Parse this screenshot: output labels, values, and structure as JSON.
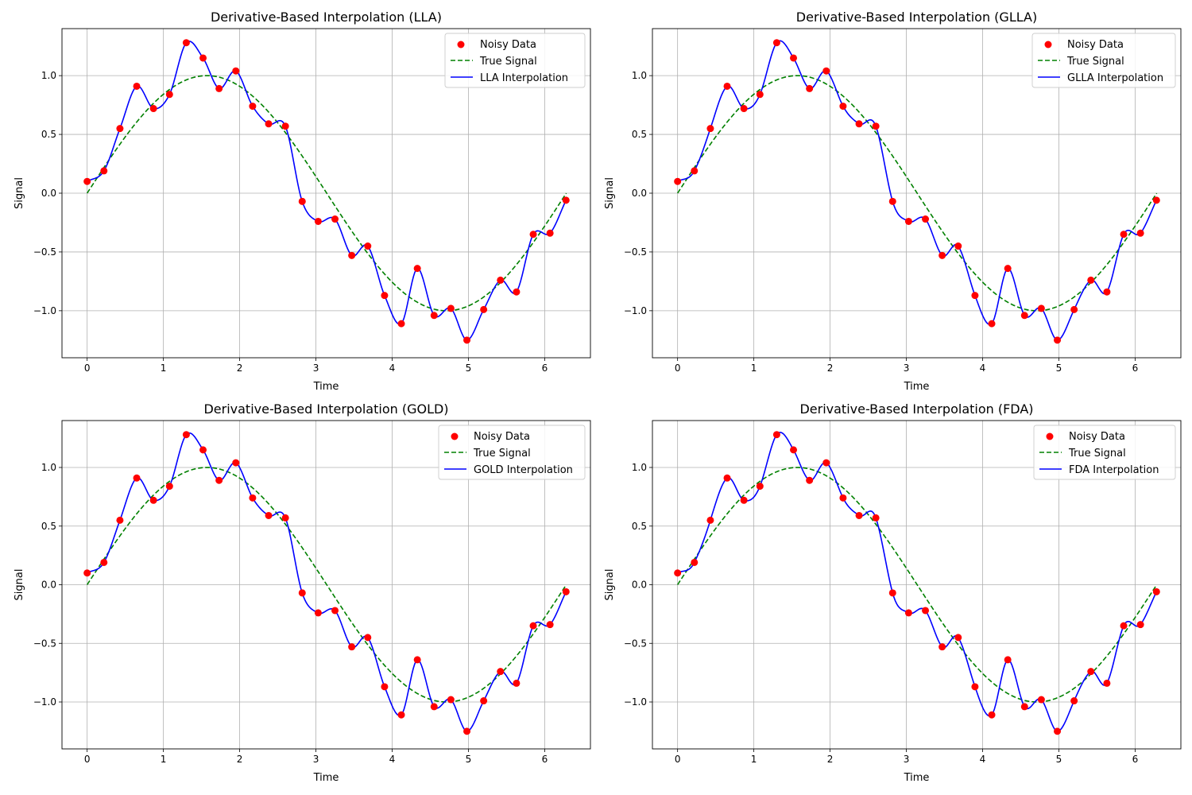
{
  "figure": {
    "legend_labels": {
      "noisy": "Noisy Data",
      "true_signal": "True Signal"
    },
    "colors": {
      "noisy": "#ff0000",
      "true_signal": "#008000",
      "interp": "#0000ff",
      "grid": "#b0b0b0"
    }
  },
  "chart_data": [
    {
      "type": "line",
      "title": "Derivative-Based Interpolation (LLA)",
      "xlabel": "Time",
      "ylabel": "Signal",
      "xlim": [
        -0.33,
        6.6
      ],
      "ylim": [
        -1.4,
        1.4
      ],
      "xticks": [
        0,
        1,
        2,
        3,
        4,
        5,
        6
      ],
      "yticks": [
        -1.0,
        -0.5,
        0.0,
        0.5,
        1.0
      ],
      "grid": true,
      "legend": "top-right",
      "series": [
        {
          "name": "Noisy Data",
          "kind": "scatter",
          "x": [
            0.0,
            0.22,
            0.43,
            0.65,
            0.87,
            1.08,
            1.3,
            1.52,
            1.73,
            1.95,
            2.17,
            2.38,
            2.6,
            2.82,
            3.03,
            3.25,
            3.47,
            3.68,
            3.9,
            4.12,
            4.33,
            4.55,
            4.77,
            4.98,
            5.2,
            5.42,
            5.63,
            5.85,
            6.07,
            6.28
          ],
          "y": [
            0.1,
            0.19,
            0.55,
            0.91,
            0.72,
            0.84,
            1.28,
            1.15,
            0.89,
            1.04,
            0.74,
            0.59,
            0.57,
            -0.07,
            -0.24,
            -0.22,
            -0.53,
            -0.45,
            -0.87,
            -1.11,
            -0.64,
            -1.04,
            -0.98,
            -1.25,
            -0.99,
            -0.74,
            -0.84,
            -0.35,
            -0.34,
            -0.06
          ]
        },
        {
          "name": "True Signal",
          "kind": "dashed-line",
          "function": "sin(t)",
          "x_range": [
            0,
            6.283
          ]
        },
        {
          "name": "LLA Interpolation",
          "kind": "line",
          "method": "interpolates Noisy Data"
        }
      ]
    },
    {
      "type": "line",
      "title": "Derivative-Based Interpolation (GLLA)",
      "xlabel": "Time",
      "ylabel": "Signal",
      "xlim": [
        -0.33,
        6.6
      ],
      "ylim": [
        -1.4,
        1.4
      ],
      "xticks": [
        0,
        1,
        2,
        3,
        4,
        5,
        6
      ],
      "yticks": [
        -1.0,
        -0.5,
        0.0,
        0.5,
        1.0
      ],
      "grid": true,
      "legend": "top-right",
      "series": [
        {
          "name": "Noisy Data",
          "kind": "scatter",
          "x": [
            0.0,
            0.22,
            0.43,
            0.65,
            0.87,
            1.08,
            1.3,
            1.52,
            1.73,
            1.95,
            2.17,
            2.38,
            2.6,
            2.82,
            3.03,
            3.25,
            3.47,
            3.68,
            3.9,
            4.12,
            4.33,
            4.55,
            4.77,
            4.98,
            5.2,
            5.42,
            5.63,
            5.85,
            6.07,
            6.28
          ],
          "y": [
            0.1,
            0.19,
            0.55,
            0.91,
            0.72,
            0.84,
            1.28,
            1.15,
            0.89,
            1.04,
            0.74,
            0.59,
            0.57,
            -0.07,
            -0.24,
            -0.22,
            -0.53,
            -0.45,
            -0.87,
            -1.11,
            -0.64,
            -1.04,
            -0.98,
            -1.25,
            -0.99,
            -0.74,
            -0.84,
            -0.35,
            -0.34,
            -0.06
          ]
        },
        {
          "name": "True Signal",
          "kind": "dashed-line",
          "function": "sin(t)",
          "x_range": [
            0,
            6.283
          ]
        },
        {
          "name": "GLLA Interpolation",
          "kind": "line",
          "method": "interpolates Noisy Data"
        }
      ]
    },
    {
      "type": "line",
      "title": "Derivative-Based Interpolation (GOLD)",
      "xlabel": "Time",
      "ylabel": "Signal",
      "xlim": [
        -0.33,
        6.6
      ],
      "ylim": [
        -1.4,
        1.4
      ],
      "xticks": [
        0,
        1,
        2,
        3,
        4,
        5,
        6
      ],
      "yticks": [
        -1.0,
        -0.5,
        0.0,
        0.5,
        1.0
      ],
      "grid": true,
      "legend": "top-right",
      "series": [
        {
          "name": "Noisy Data",
          "kind": "scatter",
          "x": [
            0.0,
            0.22,
            0.43,
            0.65,
            0.87,
            1.08,
            1.3,
            1.52,
            1.73,
            1.95,
            2.17,
            2.38,
            2.6,
            2.82,
            3.03,
            3.25,
            3.47,
            3.68,
            3.9,
            4.12,
            4.33,
            4.55,
            4.77,
            4.98,
            5.2,
            5.42,
            5.63,
            5.85,
            6.07,
            6.28
          ],
          "y": [
            0.1,
            0.19,
            0.55,
            0.91,
            0.72,
            0.84,
            1.28,
            1.15,
            0.89,
            1.04,
            0.74,
            0.59,
            0.57,
            -0.07,
            -0.24,
            -0.22,
            -0.53,
            -0.45,
            -0.87,
            -1.11,
            -0.64,
            -1.04,
            -0.98,
            -1.25,
            -0.99,
            -0.74,
            -0.84,
            -0.35,
            -0.34,
            -0.06
          ]
        },
        {
          "name": "True Signal",
          "kind": "dashed-line",
          "function": "sin(t)",
          "x_range": [
            0,
            6.283
          ]
        },
        {
          "name": "GOLD Interpolation",
          "kind": "line",
          "method": "interpolates Noisy Data"
        }
      ]
    },
    {
      "type": "line",
      "title": "Derivative-Based Interpolation (FDA)",
      "xlabel": "Time",
      "ylabel": "Signal",
      "xlim": [
        -0.33,
        6.6
      ],
      "ylim": [
        -1.4,
        1.4
      ],
      "xticks": [
        0,
        1,
        2,
        3,
        4,
        5,
        6
      ],
      "yticks": [
        -1.0,
        -0.5,
        0.0,
        0.5,
        1.0
      ],
      "grid": true,
      "legend": "top-right",
      "series": [
        {
          "name": "Noisy Data",
          "kind": "scatter",
          "x": [
            0.0,
            0.22,
            0.43,
            0.65,
            0.87,
            1.08,
            1.3,
            1.52,
            1.73,
            1.95,
            2.17,
            2.38,
            2.6,
            2.82,
            3.03,
            3.25,
            3.47,
            3.68,
            3.9,
            4.12,
            4.33,
            4.55,
            4.77,
            4.98,
            5.2,
            5.42,
            5.63,
            5.85,
            6.07,
            6.28
          ],
          "y": [
            0.1,
            0.19,
            0.55,
            0.91,
            0.72,
            0.84,
            1.28,
            1.15,
            0.89,
            1.04,
            0.74,
            0.59,
            0.57,
            -0.07,
            -0.24,
            -0.22,
            -0.53,
            -0.45,
            -0.87,
            -1.11,
            -0.64,
            -1.04,
            -0.98,
            -1.25,
            -0.99,
            -0.74,
            -0.84,
            -0.35,
            -0.34,
            -0.06
          ]
        },
        {
          "name": "True Signal",
          "kind": "dashed-line",
          "function": "sin(t)",
          "x_range": [
            0,
            6.283
          ]
        },
        {
          "name": "FDA Interpolation",
          "kind": "line",
          "method": "interpolates Noisy Data"
        }
      ]
    }
  ]
}
